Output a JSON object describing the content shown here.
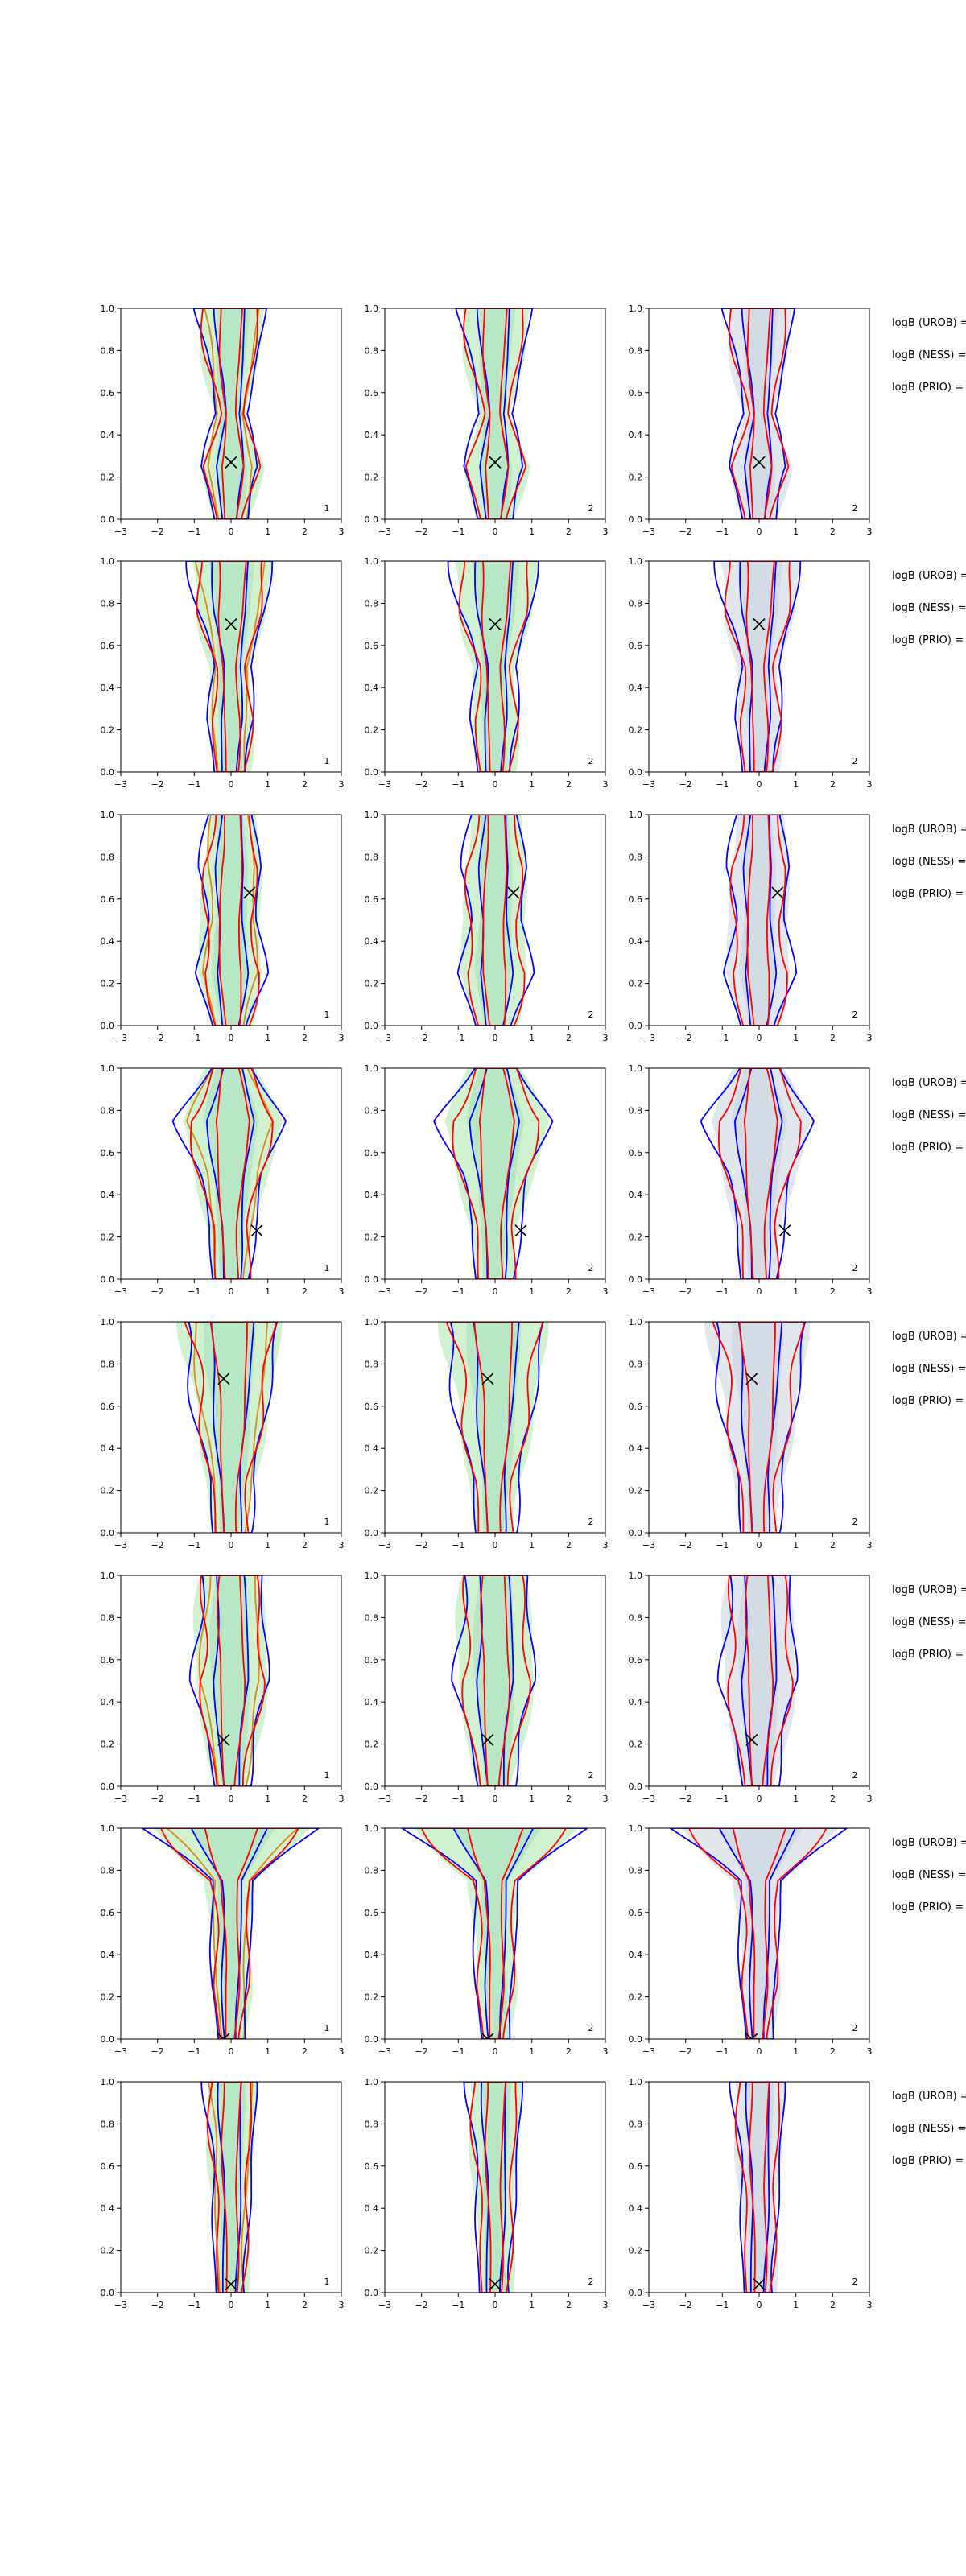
{
  "colors": {
    "band_fill_green": "#c8f0c8",
    "band_fill_grey": "#dde3ea",
    "contour_blue": "#0000ff",
    "contour_red": "#ff0000",
    "contour_orange": "#d98a1a",
    "marker": "#000000"
  },
  "chart_data": {
    "type": "contour-grid",
    "rows": 8,
    "cols": 3,
    "x_ticks": [
      -3,
      -2,
      -1,
      0,
      1,
      2,
      3
    ],
    "y_ticks": [
      0.0,
      0.2,
      0.4,
      0.6,
      0.8,
      1.0
    ],
    "xlim": [
      -3,
      3
    ],
    "ylim": [
      0,
      1
    ],
    "panel_corner_labels": [
      "1",
      "2",
      "2"
    ],
    "side_labels": [
      "logB (UROB) =",
      "logB (NESS) =",
      "logB (PRIO) ="
    ],
    "row_markers": [
      {
        "x": 0.0,
        "y": 0.27
      },
      {
        "x": 0.0,
        "y": 0.7
      },
      {
        "x": 0.5,
        "y": 0.63
      },
      {
        "x": 0.7,
        "y": 0.23
      },
      {
        "x": -0.2,
        "y": 0.73
      },
      {
        "x": -0.2,
        "y": 0.22
      },
      {
        "x": -0.2,
        "y": 0.0
      },
      {
        "x": 0.0,
        "y": 0.04
      }
    ],
    "row_half_widths": [
      [
        0.45,
        0.8,
        0.4,
        0.7,
        0.9
      ],
      [
        0.45,
        0.6,
        0.5,
        0.9,
        1.1
      ],
      [
        0.5,
        0.9,
        0.7,
        0.8,
        0.6
      ],
      [
        0.5,
        0.6,
        0.9,
        1.4,
        0.6
      ],
      [
        0.5,
        0.6,
        0.9,
        1.1,
        1.3
      ],
      [
        0.45,
        0.7,
        1.0,
        0.9,
        0.8
      ],
      [
        0.35,
        0.5,
        0.5,
        0.6,
        2.2
      ],
      [
        0.4,
        0.45,
        0.5,
        0.6,
        0.7
      ]
    ]
  }
}
